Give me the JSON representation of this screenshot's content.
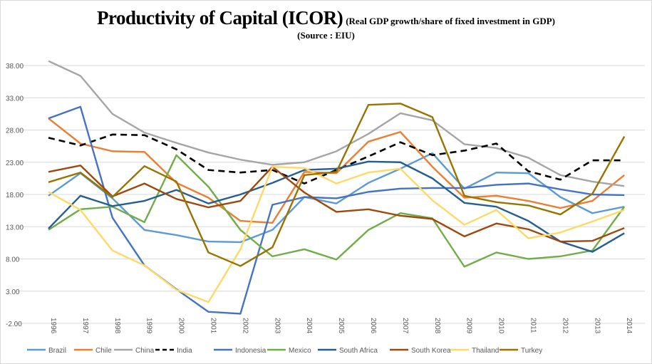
{
  "chart_data": {
    "type": "line",
    "title": "Productivity of Capital (ICOR)",
    "subtitle": "(Real GDP growth/share of fixed investment in GDP)",
    "source": "(Source : EIU)",
    "xlabel": "",
    "ylabel": "",
    "ylim": [
      -2,
      38
    ],
    "yticks": [
      "-2.00",
      "3.00",
      "8.00",
      "13.00",
      "18.00",
      "23.00",
      "28.00",
      "33.00",
      "38.00"
    ],
    "grid": true,
    "legend": "bottom",
    "categories": [
      "1996",
      "1997",
      "1998",
      "1999",
      "2000",
      "2001",
      "2002",
      "2003",
      "2004",
      "2005",
      "2006",
      "2007",
      "2008",
      "2009",
      "2010",
      "2011",
      "2012",
      "2013",
      "2014"
    ],
    "series": [
      {
        "name": "Brazil",
        "color": "#5B9BD5",
        "dash": false,
        "values": [
          17.8,
          21.3,
          17.4,
          12.5,
          11.7,
          10.7,
          10.6,
          12.5,
          17.6,
          16.6,
          19.8,
          22.0,
          24.4,
          18.9,
          21.4,
          21.3,
          17.6,
          15.1,
          16.1
        ]
      },
      {
        "name": "Chile",
        "color": "#ED7D31",
        "dash": false,
        "values": [
          29.8,
          25.9,
          24.7,
          24.6,
          19.8,
          17.5,
          13.9,
          13.6,
          21.5,
          21.3,
          26.2,
          27.7,
          22.3,
          17.5,
          17.8,
          17.0,
          15.9,
          17.0,
          21.0
        ]
      },
      {
        "name": "China",
        "color": "#A5A5A5",
        "dash": false,
        "values": [
          38.7,
          36.4,
          30.5,
          27.6,
          26.0,
          24.5,
          23.4,
          22.6,
          23.0,
          24.7,
          27.4,
          30.6,
          29.5,
          25.8,
          25.2,
          23.7,
          21.0,
          20.0,
          19.3
        ]
      },
      {
        "name": "India",
        "color": "#000000",
        "dash": true,
        "values": [
          26.8,
          25.6,
          27.3,
          27.2,
          25.0,
          21.8,
          21.4,
          21.8,
          19.7,
          21.8,
          23.9,
          26.1,
          24.1,
          24.8,
          25.9,
          21.6,
          20.3,
          23.3,
          23.3
        ]
      },
      {
        "name": "Indonesia",
        "color": "#4472C4",
        "dash": false,
        "values": [
          29.8,
          31.6,
          14.4,
          7.0,
          3.3,
          -0.2,
          -0.5,
          16.4,
          17.6,
          17.4,
          18.4,
          18.9,
          19.0,
          19.0,
          19.5,
          19.7,
          18.8,
          18.0,
          17.9
        ]
      },
      {
        "name": "Mexico",
        "color": "#70AD47",
        "dash": false,
        "values": [
          12.5,
          15.7,
          16.1,
          13.7,
          24.1,
          19.2,
          12.5,
          8.4,
          9.5,
          7.9,
          12.5,
          15.1,
          14.3,
          6.8,
          9.0,
          8.0,
          8.4,
          9.3,
          16.1
        ]
      },
      {
        "name": "South Africa",
        "color": "#255E91",
        "dash": false,
        "values": [
          12.7,
          17.8,
          16.2,
          17.0,
          18.7,
          16.6,
          18.0,
          19.8,
          21.8,
          22.0,
          23.1,
          23.0,
          20.5,
          16.7,
          16.1,
          13.9,
          10.7,
          9.1,
          12.0
        ]
      },
      {
        "name": "South Korea",
        "color": "#9E480E",
        "dash": false,
        "values": [
          21.5,
          22.5,
          17.7,
          19.7,
          17.3,
          16.0,
          17.0,
          22.3,
          18.3,
          15.3,
          15.7,
          14.7,
          14.2,
          11.5,
          13.5,
          12.6,
          10.7,
          10.8,
          12.8
        ]
      },
      {
        "name": "Thailand",
        "color": "#FFD966",
        "dash": false,
        "values": [
          18.4,
          15.6,
          9.3,
          7.0,
          3.2,
          1.3,
          9.5,
          22.3,
          22.1,
          19.7,
          21.4,
          22.0,
          17.1,
          13.3,
          15.6,
          11.2,
          12.1,
          13.8,
          15.6
        ]
      },
      {
        "name": "Turkey",
        "color": "#997300",
        "dash": false,
        "values": [
          19.9,
          21.4,
          17.6,
          22.4,
          20.0,
          9.0,
          6.9,
          9.8,
          21.0,
          21.5,
          31.9,
          32.1,
          30.0,
          17.8,
          16.8,
          16.3,
          14.9,
          18.1,
          27.0
        ]
      }
    ]
  }
}
